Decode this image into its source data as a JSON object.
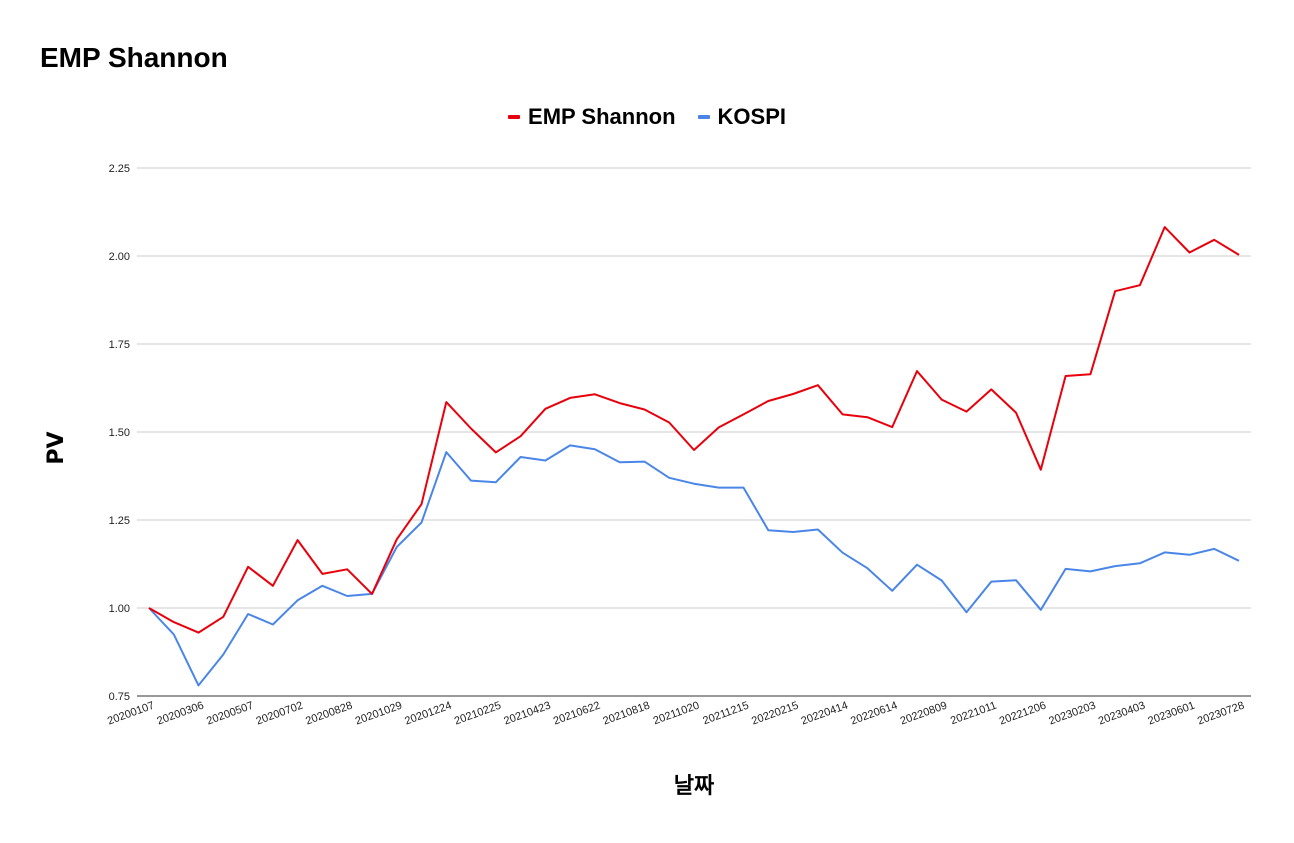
{
  "chart_data": {
    "type": "line",
    "title": "EMP Shannon",
    "xlabel": "날짜",
    "ylabel": "PV",
    "ylim": [
      0.75,
      2.25
    ],
    "yticks": [
      "0.75",
      "1.00",
      "1.25",
      "1.50",
      "1.75",
      "2.00",
      "2.25"
    ],
    "grid": true,
    "legend_position": "top-center",
    "x_tick_labels": [
      "20200107",
      "20200306",
      "20200507",
      "20200702",
      "20200828",
      "20201029",
      "20201224",
      "20210225",
      "20210423",
      "20210622",
      "20210818",
      "20211020",
      "20211215",
      "20220215",
      "20220414",
      "20220614",
      "20220809",
      "20221011",
      "20221206",
      "20230203",
      "20230403",
      "20230601",
      "20230728"
    ],
    "series": [
      {
        "name": "EMP Shannon",
        "color": "#e8000b",
        "values": [
          1.0,
          0.96,
          0.93,
          0.975,
          1.117,
          1.063,
          1.193,
          1.097,
          1.11,
          1.04,
          1.195,
          1.295,
          1.585,
          1.51,
          1.442,
          1.488,
          1.566,
          1.597,
          1.607,
          1.582,
          1.564,
          1.527,
          1.449,
          1.513,
          1.55,
          1.588,
          1.608,
          1.633,
          1.55,
          1.542,
          1.514,
          1.673,
          1.592,
          1.558,
          1.621,
          1.555,
          1.393,
          1.659,
          1.664,
          1.9,
          1.917,
          2.082,
          2.01,
          2.046,
          2.003
        ]
      },
      {
        "name": "KOSPI",
        "color": "#4a86e8",
        "values": [
          1.0,
          0.925,
          0.78,
          0.868,
          0.983,
          0.953,
          1.022,
          1.063,
          1.034,
          1.04,
          1.173,
          1.243,
          1.443,
          1.362,
          1.357,
          1.429,
          1.419,
          1.462,
          1.451,
          1.414,
          1.416,
          1.37,
          1.353,
          1.342,
          1.342,
          1.221,
          1.216,
          1.223,
          1.157,
          1.113,
          1.049,
          1.123,
          1.078,
          0.988,
          1.075,
          1.079,
          0.995,
          1.111,
          1.104,
          1.119,
          1.127,
          1.158,
          1.151,
          1.168,
          1.134
        ]
      }
    ]
  }
}
